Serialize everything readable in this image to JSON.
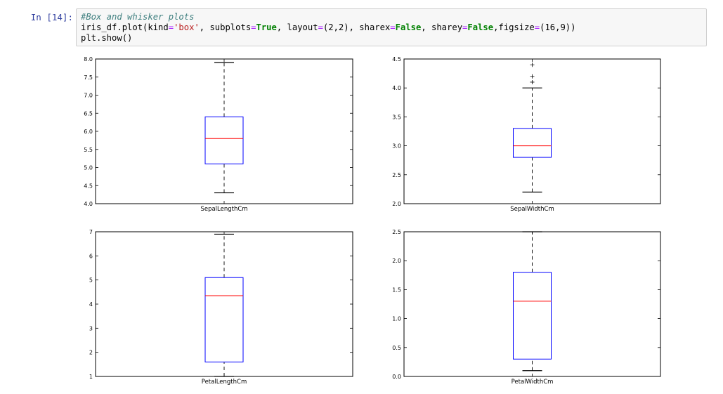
{
  "cell": {
    "prompt": "In [14]:",
    "line1": "#Box and whisker plots",
    "line3": "plt.show()"
  },
  "chart_data": [
    {
      "type": "box",
      "category": "SepalLengthCm",
      "yticks": [
        "4.0",
        "4.5",
        "5.0",
        "5.5",
        "6.0",
        "6.5",
        "7.0",
        "7.5",
        "8.0"
      ],
      "ylim": [
        4.0,
        8.0
      ],
      "whisker_low": 4.3,
      "q1": 5.1,
      "median": 5.8,
      "q3": 6.4,
      "whisker_high": 7.9,
      "outliers": []
    },
    {
      "type": "box",
      "category": "SepalWidthCm",
      "yticks": [
        "2.0",
        "2.5",
        "3.0",
        "3.5",
        "4.0",
        "4.5"
      ],
      "ylim": [
        2.0,
        4.5
      ],
      "whisker_low": 2.2,
      "q1": 2.8,
      "median": 3.0,
      "q3": 3.3,
      "whisker_high": 4.0,
      "outliers": [
        4.1,
        4.2,
        4.4
      ]
    },
    {
      "type": "box",
      "category": "PetalLengthCm",
      "yticks": [
        "1",
        "2",
        "3",
        "4",
        "5",
        "6",
        "7"
      ],
      "ylim": [
        1,
        7
      ],
      "whisker_low": 1.0,
      "q1": 1.6,
      "median": 4.35,
      "q3": 5.1,
      "whisker_high": 6.9,
      "outliers": []
    },
    {
      "type": "box",
      "category": "PetalWidthCm",
      "yticks": [
        "0.0",
        "0.5",
        "1.0",
        "1.5",
        "2.0",
        "2.5"
      ],
      "ylim": [
        0.0,
        2.5
      ],
      "whisker_low": 0.1,
      "q1": 0.3,
      "median": 1.3,
      "q3": 1.8,
      "whisker_high": 2.5,
      "outliers": []
    }
  ],
  "colors": {
    "box": "#0000ff",
    "median": "#ff0000",
    "whisker": "#000000"
  }
}
